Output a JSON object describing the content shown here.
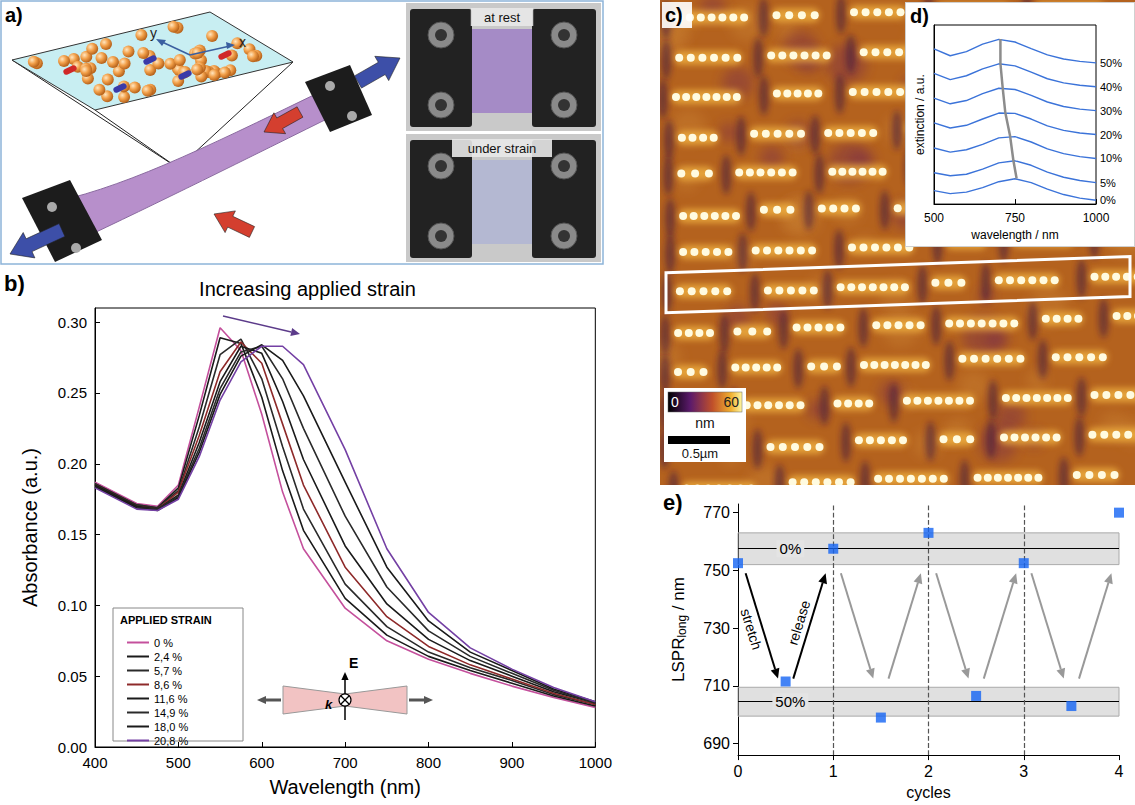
{
  "chart_data": [
    {
      "panel": "b)",
      "type": "line",
      "title": "Increasing applied strain",
      "xlabel": "Wavelength (nm)",
      "ylabel": "Absorbance (a.u.)",
      "x": [
        400,
        450,
        475,
        500,
        525,
        550,
        575,
        600,
        625,
        650,
        700,
        750,
        800,
        850,
        900,
        950,
        1000
      ],
      "xlim": [
        400,
        1000
      ],
      "xticks": [
        400,
        500,
        600,
        700,
        800,
        900,
        1000
      ],
      "ylim": [
        0,
        0.31
      ],
      "yticks": [
        {
          "value": 0,
          "label": "0.00"
        },
        {
          "value": 0.05,
          "label": "0.05"
        },
        {
          "value": 0.1,
          "label": "0.10"
        },
        {
          "value": 0.15,
          "label": "0.15"
        },
        {
          "value": 0.2,
          "label": "0.20"
        },
        {
          "value": 0.25,
          "label": "0.25"
        },
        {
          "value": 0.3,
          "label": "0.30"
        }
      ],
      "legend_title": "APPLIED STRAIN",
      "legend": "lower left",
      "annotations": [
        "E",
        "k"
      ],
      "series": [
        {
          "name": "0 %",
          "color": "#c4509c",
          "values": [
            0.187,
            0.172,
            0.17,
            0.185,
            0.24,
            0.296,
            0.28,
            0.235,
            0.18,
            0.14,
            0.098,
            0.075,
            0.062,
            0.052,
            0.043,
            0.035,
            0.028
          ]
        },
        {
          "name": "2,4 %",
          "color": "#1a1a1a",
          "values": [
            0.186,
            0.171,
            0.169,
            0.183,
            0.234,
            0.289,
            0.285,
            0.247,
            0.195,
            0.153,
            0.105,
            0.079,
            0.064,
            0.054,
            0.045,
            0.036,
            0.029
          ]
        },
        {
          "name": "5,7 %",
          "color": "#2a2a2a",
          "values": [
            0.186,
            0.171,
            0.169,
            0.181,
            0.226,
            0.277,
            0.288,
            0.26,
            0.212,
            0.168,
            0.115,
            0.085,
            0.067,
            0.056,
            0.047,
            0.037,
            0.03
          ]
        },
        {
          "name": "8,6 %",
          "color": "#8e2a2a",
          "values": [
            0.185,
            0.17,
            0.168,
            0.18,
            0.22,
            0.265,
            0.286,
            0.271,
            0.228,
            0.185,
            0.127,
            0.092,
            0.071,
            0.058,
            0.048,
            0.038,
            0.03
          ]
        },
        {
          "name": "11,6 %",
          "color": "#1a1a1a",
          "values": [
            0.185,
            0.17,
            0.168,
            0.178,
            0.215,
            0.258,
            0.283,
            0.278,
            0.244,
            0.203,
            0.142,
            0.101,
            0.076,
            0.061,
            0.05,
            0.039,
            0.031
          ]
        },
        {
          "name": "14,9 %",
          "color": "#2a2a2a",
          "values": [
            0.184,
            0.169,
            0.168,
            0.177,
            0.211,
            0.253,
            0.279,
            0.283,
            0.26,
            0.225,
            0.163,
            0.113,
            0.082,
            0.064,
            0.052,
            0.04,
            0.031
          ]
        },
        {
          "name": "18,0 %",
          "color": "#1a1a1a",
          "values": [
            0.184,
            0.169,
            0.167,
            0.176,
            0.208,
            0.249,
            0.276,
            0.284,
            0.273,
            0.248,
            0.187,
            0.127,
            0.089,
            0.067,
            0.054,
            0.041,
            0.032
          ]
        },
        {
          "name": "20,8 %",
          "color": "#7440a4",
          "values": [
            0.183,
            0.168,
            0.167,
            0.175,
            0.205,
            0.245,
            0.272,
            0.283,
            0.283,
            0.27,
            0.21,
            0.14,
            0.095,
            0.07,
            0.055,
            0.042,
            0.032
          ]
        }
      ]
    },
    {
      "panel": "d)",
      "type": "line",
      "xlabel": "wavelength / nm",
      "ylabel": "extinction / a.u.",
      "x": [
        500,
        550,
        600,
        650,
        700,
        750,
        800,
        850,
        900,
        950,
        1000
      ],
      "xlim": [
        500,
        1000
      ],
      "xticks": [
        500,
        750,
        1000
      ],
      "ylim": [
        0,
        6
      ],
      "tick_labels": "x",
      "color": "#3b73d9",
      "series": [
        {
          "name": "0%",
          "values": [
            0.45,
            0.35,
            0.4,
            0.55,
            0.75,
            0.85,
            0.72,
            0.5,
            0.32,
            0.2,
            0.13
          ]
        },
        {
          "name": "5%",
          "values": [
            1.05,
            0.95,
            1.0,
            1.17,
            1.38,
            1.45,
            1.3,
            1.07,
            0.9,
            0.79,
            0.72
          ]
        },
        {
          "name": "10%",
          "values": [
            1.88,
            1.74,
            1.82,
            2.0,
            2.22,
            2.26,
            2.08,
            1.85,
            1.69,
            1.59,
            1.53
          ]
        },
        {
          "name": "20%",
          "values": [
            2.72,
            2.55,
            2.64,
            2.85,
            3.05,
            3.04,
            2.85,
            2.62,
            2.47,
            2.38,
            2.33
          ]
        },
        {
          "name": "30%",
          "values": [
            3.55,
            3.36,
            3.47,
            3.7,
            3.88,
            3.84,
            3.64,
            3.42,
            3.27,
            3.18,
            3.13
          ]
        },
        {
          "name": "40%",
          "values": [
            4.38,
            4.17,
            4.3,
            4.53,
            4.7,
            4.63,
            4.42,
            4.2,
            4.06,
            3.98,
            3.93
          ]
        },
        {
          "name": "50%",
          "values": [
            5.2,
            4.97,
            5.11,
            5.36,
            5.52,
            5.43,
            5.21,
            5.0,
            4.86,
            4.78,
            4.73
          ]
        }
      ],
      "peak_line": {
        "color": "#8c8c8c",
        "x": [
          755,
          745,
          735,
          720,
          712,
          705,
          705
        ],
        "values": [
          0.86,
          1.46,
          2.27,
          3.07,
          3.89,
          4.71,
          5.53
        ]
      }
    },
    {
      "panel": "e)",
      "type": "scatter",
      "xlabel": "cycles",
      "ylabel": [
        "LSPR",
        "long",
        " / nm"
      ],
      "x": [
        0,
        0.5,
        1,
        1.5,
        2,
        2.5,
        3,
        3.5,
        4
      ],
      "values": [
        752.5,
        711.5,
        757.5,
        699,
        763,
        706.5,
        752.5,
        703,
        770
      ],
      "color": "#1464f4",
      "marker": "square",
      "xlim": [
        0,
        4
      ],
      "xticks": [
        0,
        1,
        2,
        3,
        4
      ],
      "ylim": [
        686,
        773
      ],
      "yticks": [
        690,
        710,
        730,
        750,
        770
      ],
      "bands": [
        {
          "label": "0%",
          "center": 757.5,
          "low": 752,
          "high": 763
        },
        {
          "label": "50%",
          "center": 704.5,
          "low": 699.5,
          "high": 709.5
        }
      ],
      "vlines": [
        1,
        2,
        3
      ],
      "annotations": [
        "stretch",
        "release"
      ]
    }
  ],
  "diagram": {
    "panel": "a)",
    "axes": [
      "y",
      "x"
    ],
    "photos": [
      "at rest",
      "under strain"
    ]
  },
  "image": {
    "panel": "c)",
    "colorbar": {
      "min": 0,
      "max": 60,
      "unit": "nm"
    },
    "scale_bar": "0.5µm"
  }
}
